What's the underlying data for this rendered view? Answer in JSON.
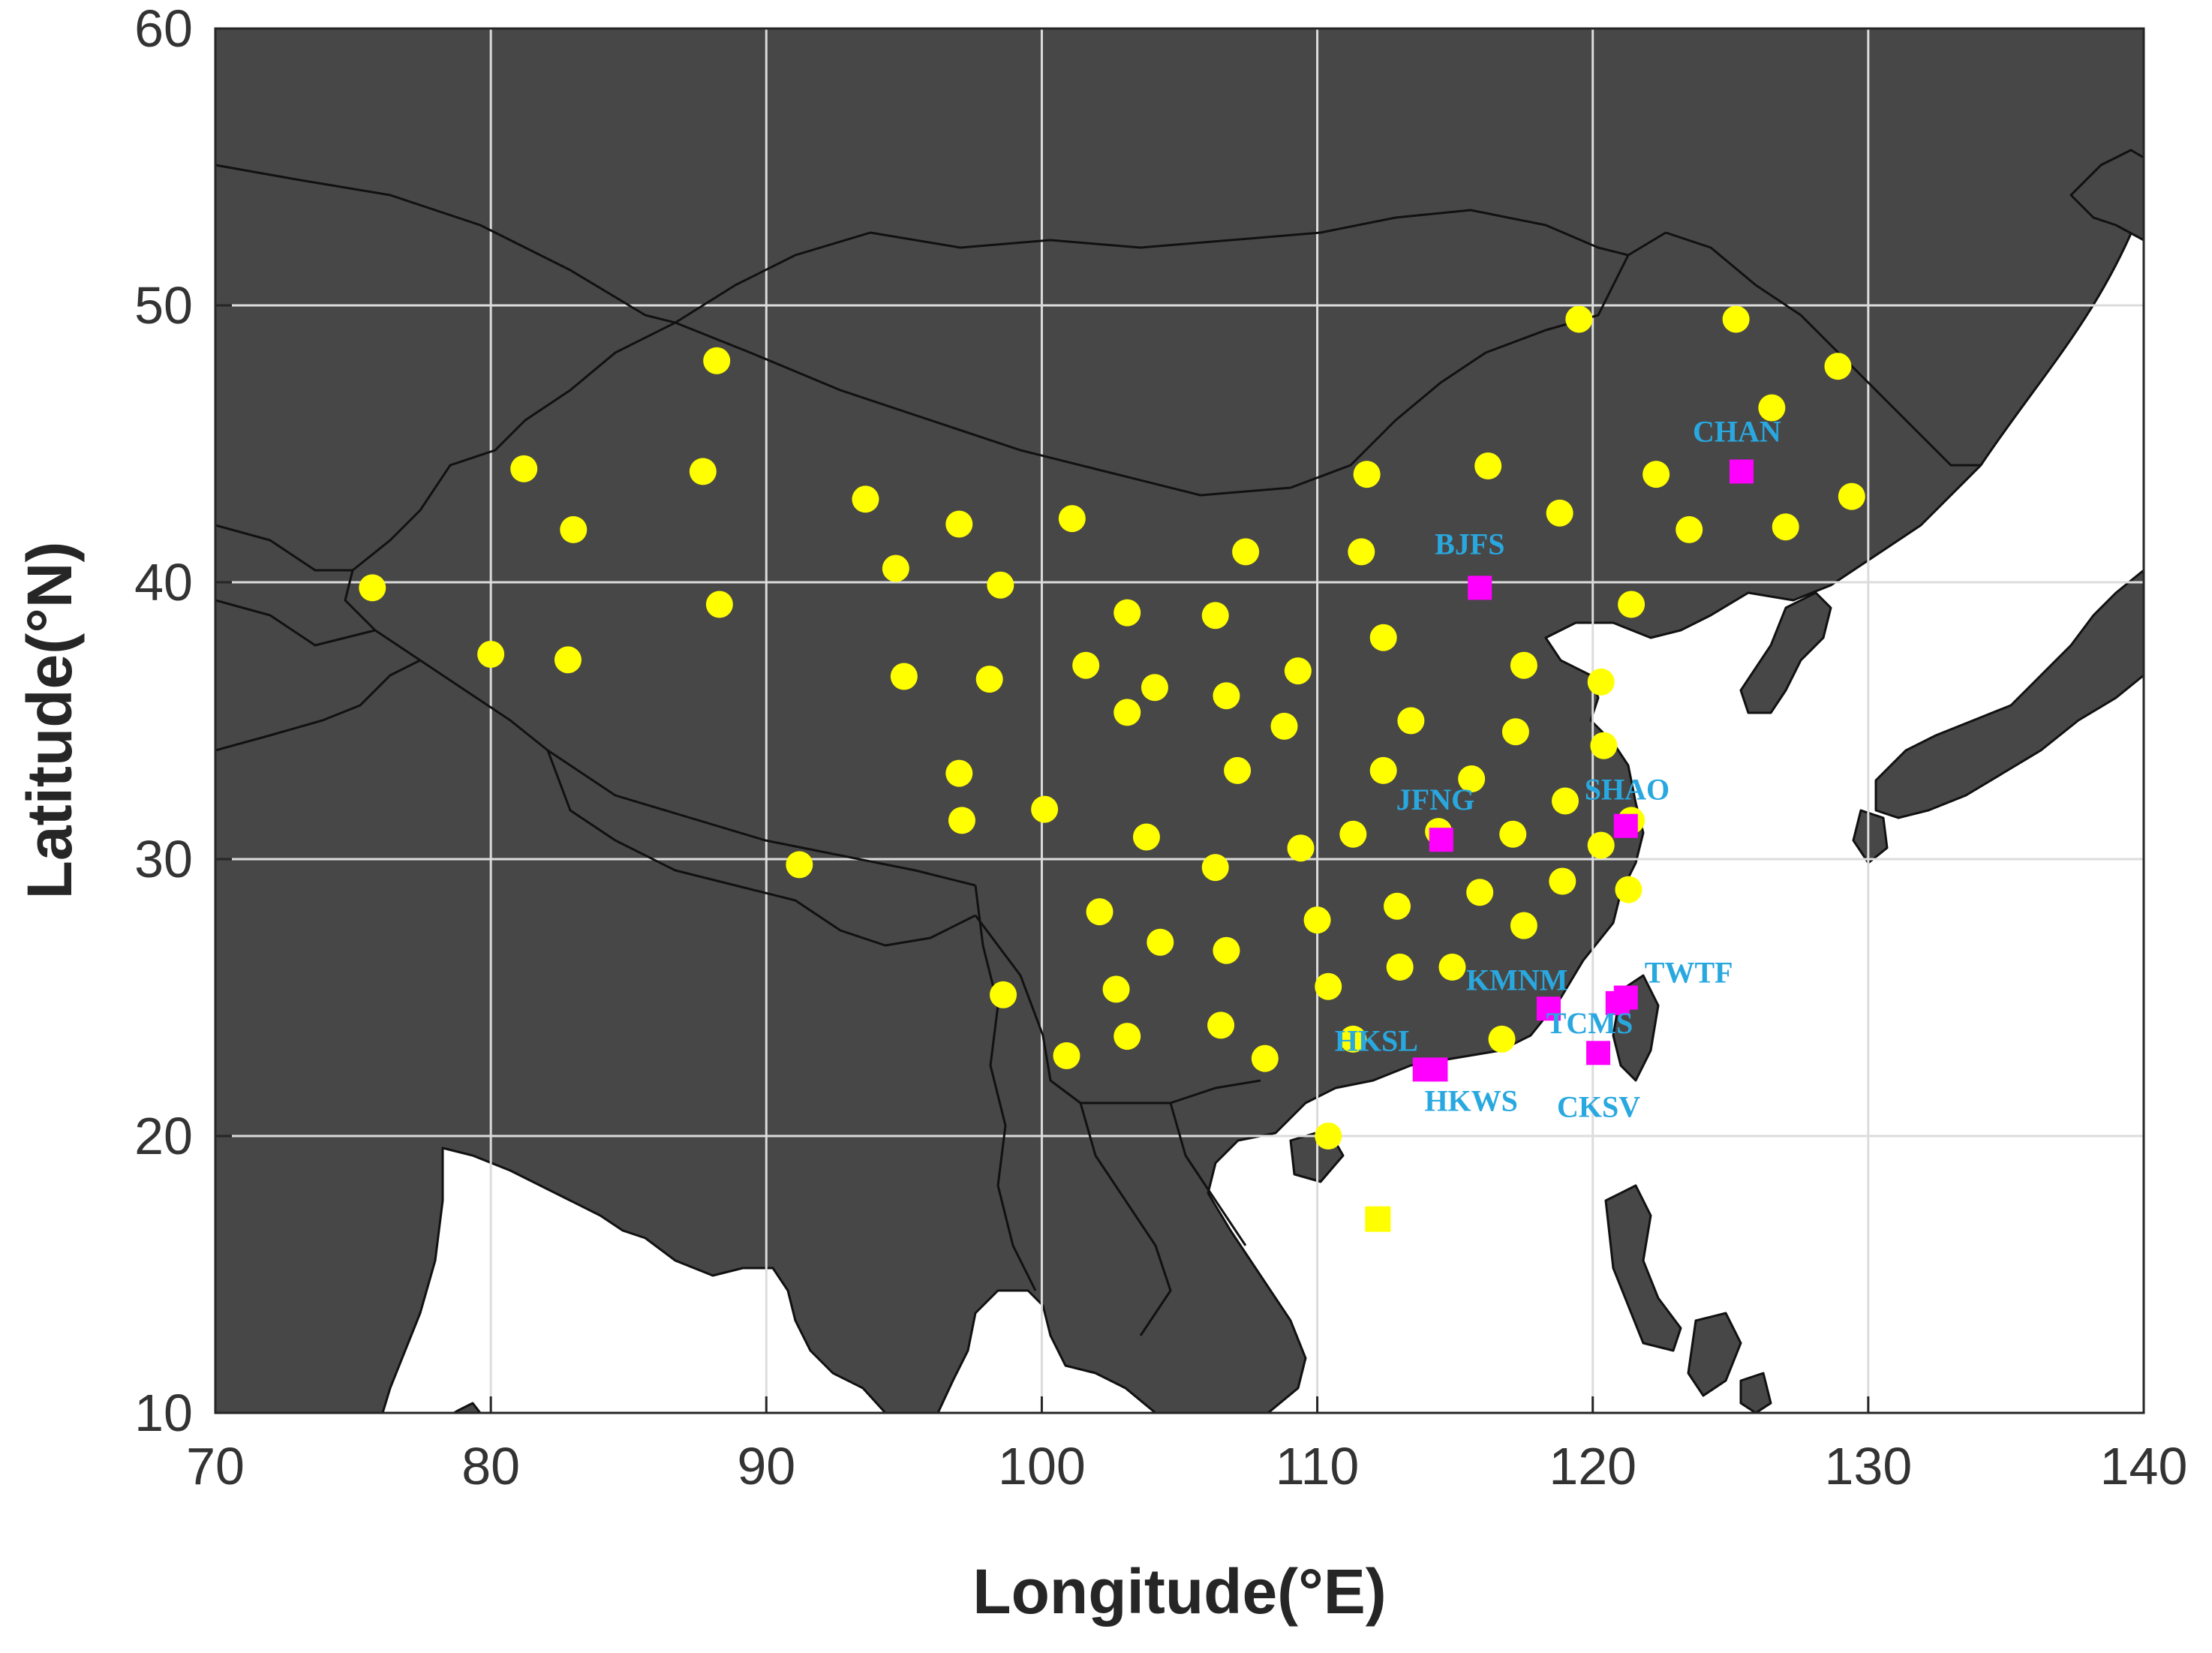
{
  "chart_data": {
    "type": "scatter",
    "xlabel": "Longitude(°E)",
    "ylabel": "Latitude(°N)",
    "xlim": [
      70,
      140
    ],
    "ylim": [
      10,
      60
    ],
    "x_ticks": [
      "70",
      "80",
      "90",
      "100",
      "110",
      "120",
      "130",
      "140"
    ],
    "y_ticks": [
      "10",
      "20",
      "30",
      "40",
      "50",
      "60"
    ],
    "grid": true,
    "colors": {
      "land": "#474747",
      "sea": "#ffffff",
      "border": "#111111",
      "gnss_station": "#ffff00",
      "reference_station": "#ff00ff",
      "station_label": "#29a8e0",
      "grid": "#dcdcdc"
    },
    "series": [
      {
        "marker": "yellow-circle",
        "points": [
          [
            75.7,
            39.8
          ],
          [
            80.0,
            37.4
          ],
          [
            81.2,
            44.1
          ],
          [
            82.8,
            37.2
          ],
          [
            83.0,
            41.9
          ],
          [
            87.7,
            44.0
          ],
          [
            88.2,
            48.0
          ],
          [
            88.3,
            39.2
          ],
          [
            91.2,
            29.8
          ],
          [
            93.6,
            43.0
          ],
          [
            94.7,
            40.5
          ],
          [
            95.0,
            36.6
          ],
          [
            97.0,
            42.1
          ],
          [
            97.0,
            33.1
          ],
          [
            97.1,
            31.4
          ],
          [
            98.1,
            36.5
          ],
          [
            98.5,
            39.9
          ],
          [
            98.6,
            25.1
          ],
          [
            100.1,
            31.8
          ],
          [
            100.9,
            22.9
          ],
          [
            101.1,
            42.3
          ],
          [
            101.6,
            37.0
          ],
          [
            102.1,
            28.1
          ],
          [
            102.7,
            25.3
          ],
          [
            103.1,
            35.3
          ],
          [
            103.1,
            38.9
          ],
          [
            103.1,
            23.6
          ],
          [
            103.8,
            30.8
          ],
          [
            104.1,
            36.2
          ],
          [
            104.3,
            27.0
          ],
          [
            106.3,
            38.8
          ],
          [
            106.3,
            29.7
          ],
          [
            106.5,
            24.0
          ],
          [
            106.7,
            35.9
          ],
          [
            106.7,
            26.7
          ],
          [
            107.1,
            33.2
          ],
          [
            107.4,
            41.1
          ],
          [
            108.1,
            22.8
          ],
          [
            108.8,
            34.8
          ],
          [
            109.3,
            36.8
          ],
          [
            109.4,
            30.4
          ],
          [
            110.0,
            27.8
          ],
          [
            110.4,
            25.4
          ],
          [
            110.4,
            20.0
          ],
          [
            111.3,
            30.9
          ],
          [
            111.3,
            23.5
          ],
          [
            111.6,
            41.1
          ],
          [
            111.8,
            43.9
          ],
          [
            112.2,
            17.0
          ],
          [
            112.4,
            38.0
          ],
          [
            112.4,
            33.2
          ],
          [
            112.9,
            28.3
          ],
          [
            113.0,
            26.1
          ],
          [
            113.4,
            35.0
          ],
          [
            114.4,
            31.0
          ],
          [
            114.9,
            26.1
          ],
          [
            115.6,
            32.9
          ],
          [
            115.9,
            28.8
          ],
          [
            116.2,
            44.2
          ],
          [
            116.7,
            23.5
          ],
          [
            117.1,
            30.9
          ],
          [
            117.2,
            34.6
          ],
          [
            117.5,
            37.0
          ],
          [
            117.5,
            27.6
          ],
          [
            118.8,
            42.5
          ],
          [
            118.9,
            29.2
          ],
          [
            119.0,
            32.1
          ],
          [
            119.5,
            49.5
          ],
          [
            120.3,
            36.4
          ],
          [
            120.3,
            30.5
          ],
          [
            120.4,
            34.1
          ],
          [
            121.4,
            39.2
          ],
          [
            121.3,
            28.9
          ],
          [
            121.4,
            31.4
          ],
          [
            122.3,
            43.9
          ],
          [
            123.5,
            41.9
          ],
          [
            125.2,
            49.5
          ],
          [
            126.5,
            46.3
          ],
          [
            127.0,
            42.0
          ],
          [
            128.9,
            47.8
          ],
          [
            129.4,
            43.1
          ]
        ]
      },
      {
        "marker": "magenta-square",
        "points": [
          {
            "name": "CHAN",
            "lon": 125.4,
            "lat": 44.0
          },
          {
            "name": "BJFS",
            "lon": 115.9,
            "lat": 39.8
          },
          {
            "name": "JFNG",
            "lon": 114.5,
            "lat": 30.7
          },
          {
            "name": "SHAO",
            "lon": 121.2,
            "lat": 31.2
          },
          {
            "name": "KMNM",
            "lon": 118.4,
            "lat": 24.6
          },
          {
            "name": "TWTF",
            "lon": 121.2,
            "lat": 25.0
          },
          {
            "name": "TCMS",
            "lon": 120.9,
            "lat": 24.8
          },
          {
            "name": "HKSL",
            "lon": 113.9,
            "lat": 22.4
          },
          {
            "name": "HKWS",
            "lon": 114.3,
            "lat": 22.4
          },
          {
            "name": "CKSV",
            "lon": 120.2,
            "lat": 23.0
          }
        ]
      }
    ]
  }
}
